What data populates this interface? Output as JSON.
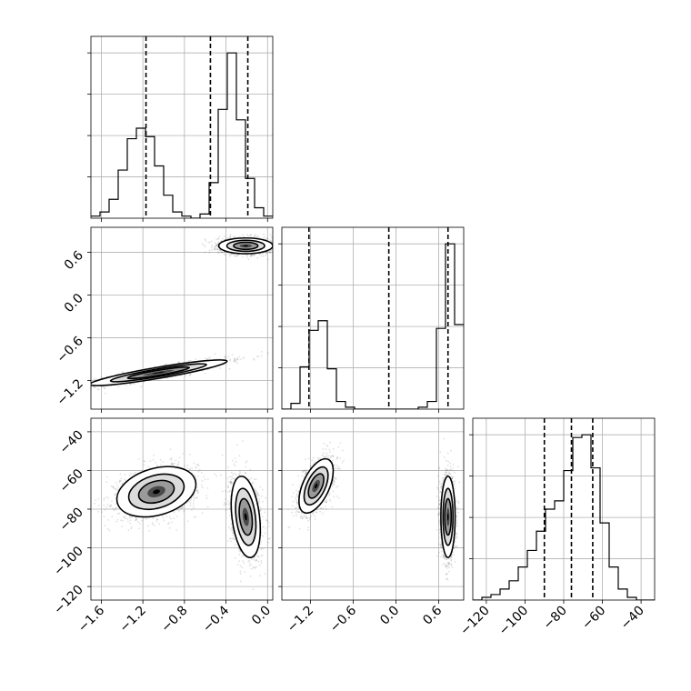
{
  "chart_data": {
    "type": "corner",
    "title": "",
    "grid": true,
    "parameters": [
      {
        "name": "",
        "range": [
          -1.7,
          0.05
        ],
        "ticks": [
          -1.6,
          -1.2,
          -0.8,
          -0.4,
          0.0
        ],
        "tick_labels": [
          "−1.6",
          "−1.2",
          "−0.8",
          "−0.4",
          "0.0"
        ]
      },
      {
        "name": "",
        "range": [
          -1.6,
          0.95
        ],
        "ticks": [
          -1.2,
          -0.6,
          0.0,
          0.6
        ],
        "tick_labels": [
          "−1.2",
          "−0.6",
          "0.0",
          "0.6"
        ]
      },
      {
        "name": "",
        "range": [
          -127,
          -33
        ],
        "ticks": [
          -120,
          -100,
          -80,
          -60,
          -40
        ],
        "tick_labels": [
          "−120",
          "−100",
          "−80",
          "−60",
          "−40"
        ]
      }
    ],
    "histograms": [
      {
        "param": 0,
        "edges": [
          -1.7,
          -1.6125,
          -1.525,
          -1.4375,
          -1.35,
          -1.2625,
          -1.175,
          -1.0875,
          -1.0,
          -0.9125,
          -0.825,
          -0.7375,
          -0.65,
          -0.5625,
          -0.475,
          -0.3875,
          -0.3,
          -0.2125,
          -0.125,
          -0.0375,
          0.05
        ],
        "counts": [
          1,
          3,
          9,
          23,
          38,
          43,
          39,
          25,
          11,
          3,
          1,
          0,
          2,
          17,
          52,
          79,
          47,
          19,
          5,
          1
        ],
        "quantiles": [
          -1.17,
          -0.55,
          -0.19
        ]
      },
      {
        "param": 1,
        "edges": [
          -1.6,
          -1.4725,
          -1.345,
          -1.2175,
          -1.09,
          -0.9625,
          -0.835,
          -0.7075,
          -0.58,
          -0.4525,
          -0.325,
          -0.1975,
          -0.07,
          0.0575,
          0.185,
          0.3125,
          0.44,
          0.5675,
          0.695,
          0.8225,
          0.95
        ],
        "counts": [
          0,
          3,
          22,
          41,
          46,
          21,
          4,
          1,
          0,
          0,
          0,
          0,
          0,
          0,
          0,
          1,
          4,
          42,
          86,
          44
        ],
        "quantiles": [
          -1.22,
          -0.1,
          0.73
        ]
      },
      {
        "param": 2,
        "edges": [
          -127,
          -122.3,
          -117.6,
          -112.9,
          -108.2,
          -103.5,
          -98.8,
          -94.1,
          -89.4,
          -84.7,
          -80.0,
          -75.3,
          -70.6,
          -65.9,
          -61.2,
          -56.5,
          -51.8,
          -47.1,
          -42.4,
          -37.7,
          -33.0
        ],
        "counts": [
          0,
          1,
          2,
          4,
          7,
          12,
          18,
          25,
          33,
          36,
          47,
          59,
          60,
          48,
          28,
          12,
          4,
          1,
          0,
          0
        ],
        "quantiles": [
          -90,
          -76,
          -65
        ]
      }
    ],
    "scatter_panels": [
      {
        "x_param": 0,
        "y_param": 1,
        "modes": [
          {
            "center": [
              -1.05,
              -1.09
            ],
            "sd": [
              0.33,
              0.09
            ],
            "rho": 0.9
          },
          {
            "center": [
              -0.21,
              0.69
            ],
            "sd": [
              0.13,
              0.055
            ],
            "rho": 0.0
          }
        ]
      },
      {
        "x_param": 0,
        "y_param": 2,
        "modes": [
          {
            "center": [
              -1.07,
              -71
            ],
            "sd": [
              0.19,
              6.5
            ],
            "rho": 0.3
          },
          {
            "center": [
              -0.21,
              -84
            ],
            "sd": [
              0.07,
              10.5
            ],
            "rho": -0.3
          }
        ]
      },
      {
        "x_param": 1,
        "y_param": 2,
        "modes": [
          {
            "center": [
              -1.12,
              -68
            ],
            "sd": [
              0.12,
              7.0
            ],
            "rho": 0.55
          },
          {
            "center": [
              0.73,
              -84
            ],
            "sd": [
              0.05,
              10.5
            ],
            "rho": 0.0
          }
        ]
      }
    ],
    "colors": {
      "hist": "#000000",
      "points": "#000000",
      "grid": "#b0b0b0"
    }
  }
}
